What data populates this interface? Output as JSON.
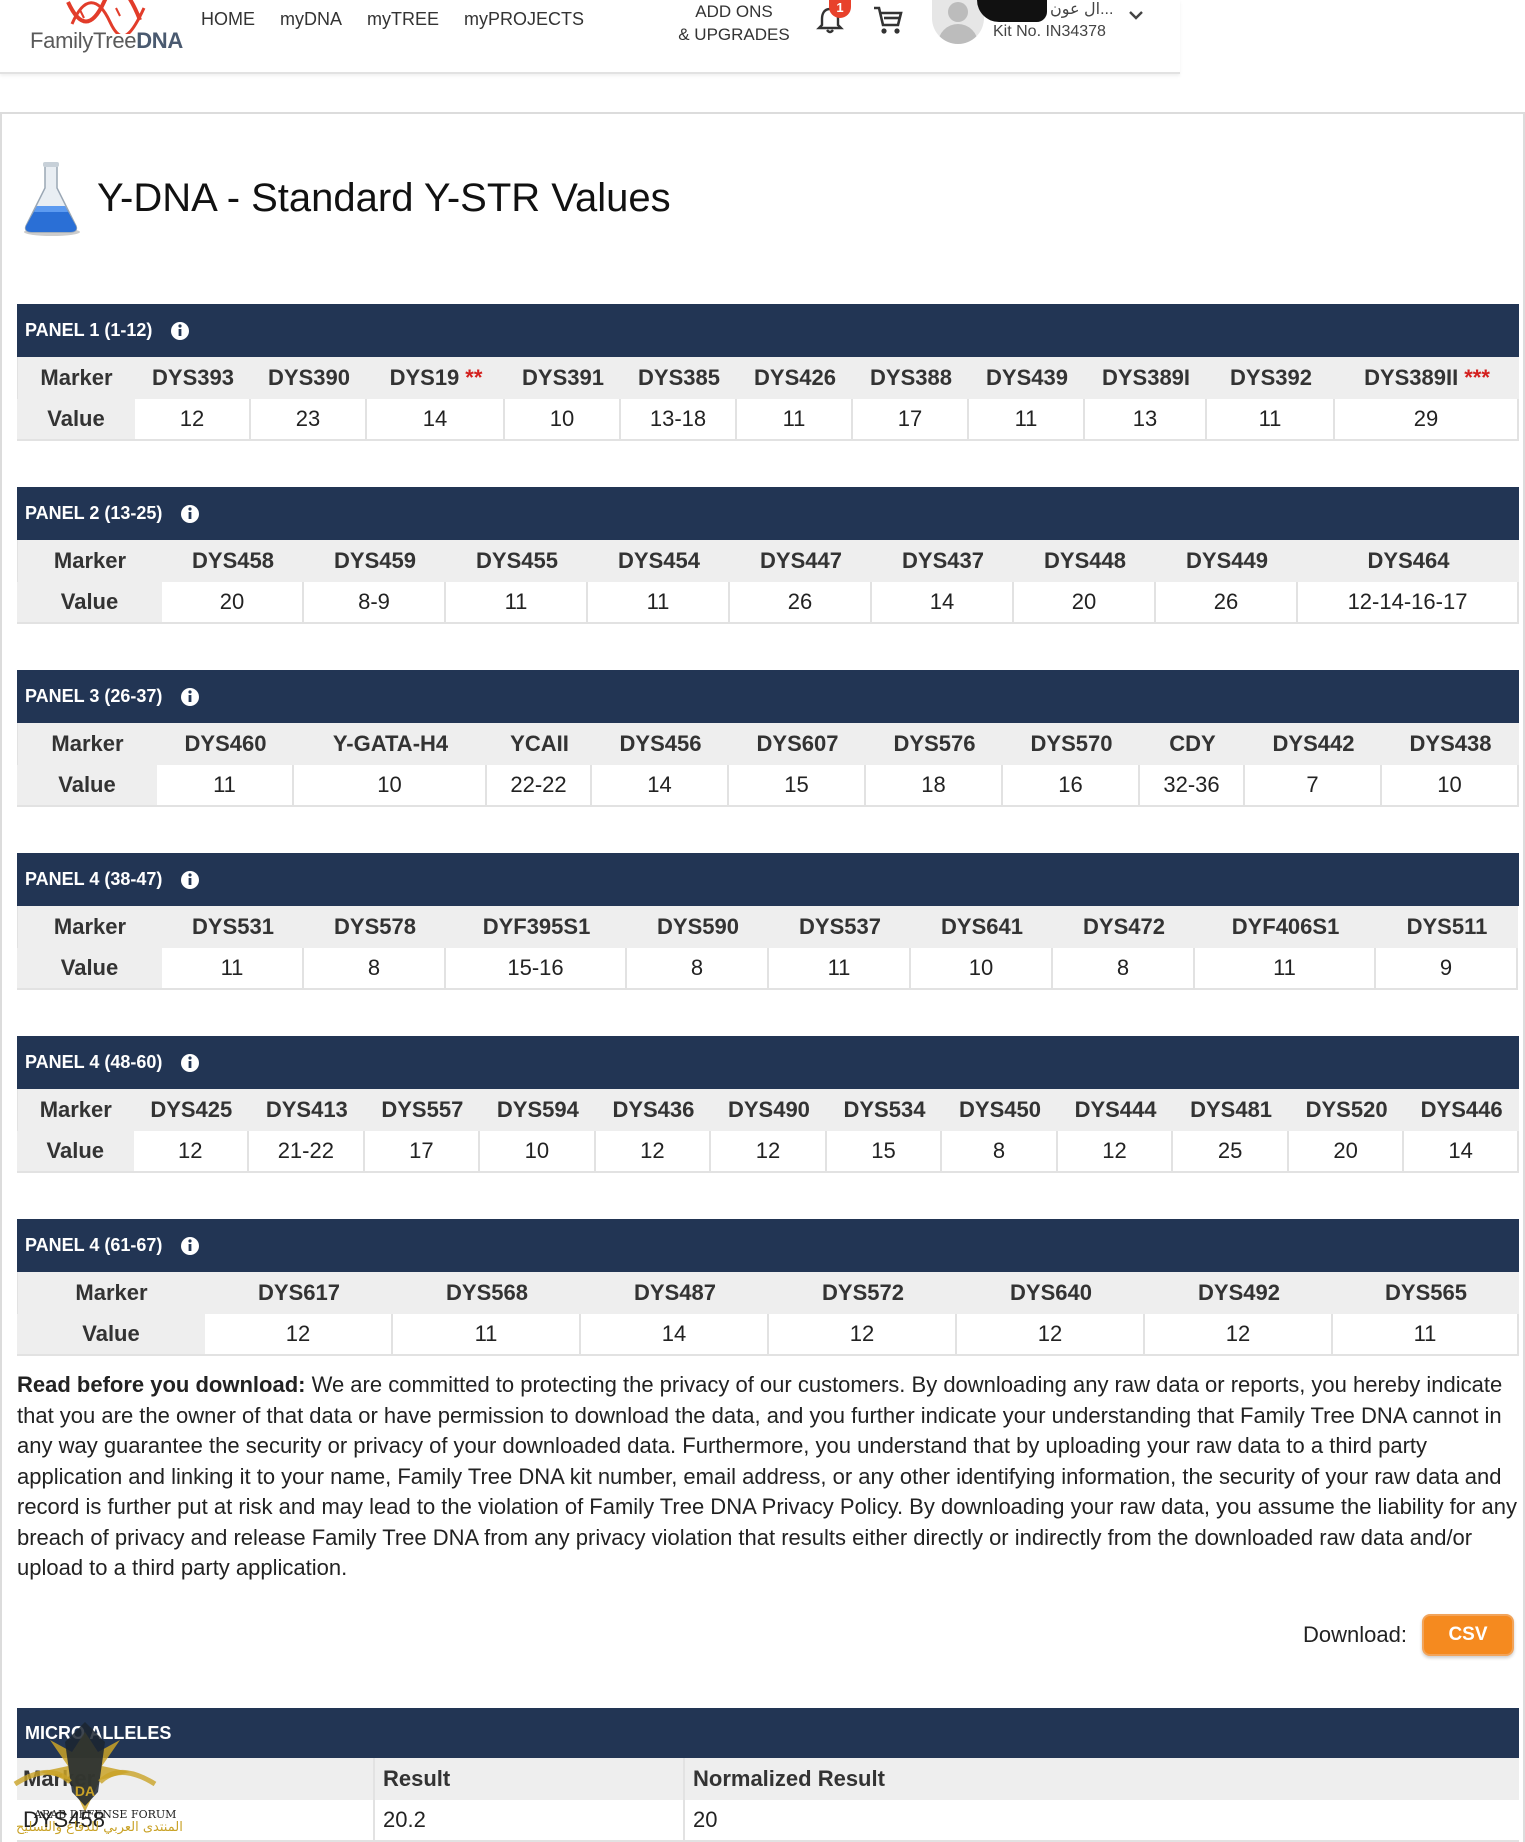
{
  "header": {
    "logo": {
      "text_light": "FamilyTree",
      "text_bold": "DNA"
    },
    "nav": [
      "HOME",
      "myDNA",
      "myTREE",
      "myPROJECTS"
    ],
    "addons_line1": "ADD ONS",
    "addons_line2": "& UPGRADES",
    "notification_count": "1",
    "user_name": "...ال عون",
    "kit_number": "Kit No. IN34378",
    "icons": {
      "bell": "bell-icon",
      "cart": "cart-icon",
      "chevron": "chevron-down-icon",
      "avatar": "user-avatar-icon"
    }
  },
  "page": {
    "title": "Y-DNA - Standard Y-STR Values"
  },
  "row_labels": {
    "marker": "Marker",
    "value": "Value"
  },
  "panels": [
    {
      "title": "PANEL 1 (1-12)",
      "cells": [
        {
          "m": "DYS393",
          "v": "12"
        },
        {
          "m": "DYS390",
          "v": "23"
        },
        {
          "m": "DYS19",
          "s": "**",
          "v": "14"
        },
        {
          "m": "DYS391",
          "v": "10"
        },
        {
          "m": "DYS385",
          "v": "13-18"
        },
        {
          "m": "DYS426",
          "v": "11"
        },
        {
          "m": "DYS388",
          "v": "17"
        },
        {
          "m": "DYS439",
          "v": "11"
        },
        {
          "m": "DYS389I",
          "v": "13"
        },
        {
          "m": "DYS392",
          "v": "11"
        },
        {
          "m": "DYS389II",
          "s": "***",
          "v": "29"
        }
      ]
    },
    {
      "title": "PANEL 2 (13-25)",
      "cells": [
        {
          "m": "DYS458",
          "v": "20"
        },
        {
          "m": "DYS459",
          "v": "8-9"
        },
        {
          "m": "DYS455",
          "v": "11"
        },
        {
          "m": "DYS454",
          "v": "11"
        },
        {
          "m": "DYS447",
          "v": "26"
        },
        {
          "m": "DYS437",
          "v": "14"
        },
        {
          "m": "DYS448",
          "v": "20"
        },
        {
          "m": "DYS449",
          "v": "26"
        },
        {
          "m": "DYS464",
          "v": "12-14-16-17"
        }
      ]
    },
    {
      "title": "PANEL 3 (26-37)",
      "cells": [
        {
          "m": "DYS460",
          "v": "11"
        },
        {
          "m": "Y-GATA-H4",
          "v": "10"
        },
        {
          "m": "YCAII",
          "v": "22-22"
        },
        {
          "m": "DYS456",
          "v": "14"
        },
        {
          "m": "DYS607",
          "v": "15"
        },
        {
          "m": "DYS576",
          "v": "18"
        },
        {
          "m": "DYS570",
          "v": "16"
        },
        {
          "m": "CDY",
          "v": "32-36"
        },
        {
          "m": "DYS442",
          "v": "7"
        },
        {
          "m": "DYS438",
          "v": "10"
        }
      ]
    },
    {
      "title": "PANEL 4 (38-47)",
      "cells": [
        {
          "m": "DYS531",
          "v": "11"
        },
        {
          "m": "DYS578",
          "v": "8"
        },
        {
          "m": "DYF395S1",
          "v": "15-16"
        },
        {
          "m": "DYS590",
          "v": "8"
        },
        {
          "m": "DYS537",
          "v": "11"
        },
        {
          "m": "DYS641",
          "v": "10"
        },
        {
          "m": "DYS472",
          "v": "8"
        },
        {
          "m": "DYF406S1",
          "v": "11"
        },
        {
          "m": "DYS511",
          "v": "9"
        }
      ]
    },
    {
      "title": "PANEL 4 (48-60)",
      "cells": [
        {
          "m": "DYS425",
          "v": "12"
        },
        {
          "m": "DYS413",
          "v": "21-22"
        },
        {
          "m": "DYS557",
          "v": "17"
        },
        {
          "m": "DYS594",
          "v": "10"
        },
        {
          "m": "DYS436",
          "v": "12"
        },
        {
          "m": "DYS490",
          "v": "12"
        },
        {
          "m": "DYS534",
          "v": "15"
        },
        {
          "m": "DYS450",
          "v": "8"
        },
        {
          "m": "DYS444",
          "v": "12"
        },
        {
          "m": "DYS481",
          "v": "25"
        },
        {
          "m": "DYS520",
          "v": "20"
        },
        {
          "m": "DYS446",
          "v": "14"
        }
      ]
    },
    {
      "title": "PANEL 4 (61-67)",
      "cells": [
        {
          "m": "DYS617",
          "v": "12"
        },
        {
          "m": "DYS568",
          "v": "11"
        },
        {
          "m": "DYS487",
          "v": "14"
        },
        {
          "m": "DYS572",
          "v": "12"
        },
        {
          "m": "DYS640",
          "v": "12"
        },
        {
          "m": "DYS492",
          "v": "12"
        },
        {
          "m": "DYS565",
          "v": "11"
        }
      ]
    }
  ],
  "disclaimer": {
    "lead": "Read before you download:",
    "body": " We are committed to protecting the privacy of our customers. By downloading any raw data or reports, you hereby indicate that you are the owner of that data or have permission to download the data, and you further indicate your understanding that Family Tree DNA cannot in any way guarantee the security or privacy of your downloaded data. Furthermore, you understand that by uploading your raw data to a third party application and linking it to your name, Family Tree DNA kit number, email address, or any other identifying information, the security of your raw data and record is further put at risk and may lead to the violation of Family Tree DNA Privacy Policy. By downloading your raw data, you assume the liability for any breach of privacy and release Family Tree DNA from any privacy violation that results either directly or indirectly from the downloaded raw data and/or upload to a third party application."
  },
  "download": {
    "label": "Download:",
    "button": "CSV"
  },
  "micro_alleles": {
    "title": "MICRO ALLELES",
    "headers": [
      "Marker",
      "Result",
      "Normalized Result"
    ],
    "rows": [
      {
        "marker": "DYS458",
        "result": "20.2",
        "normalized": "20"
      }
    ]
  },
  "watermark": {
    "line1": "ARAB DEFENSE FORUM",
    "line2": "المنتدى العربي للدفاع والتسليح"
  },
  "colors": {
    "panel_header": "#223554",
    "accent": "#f58a1f",
    "badge": "#e8412b",
    "stars": "#d3201e"
  }
}
